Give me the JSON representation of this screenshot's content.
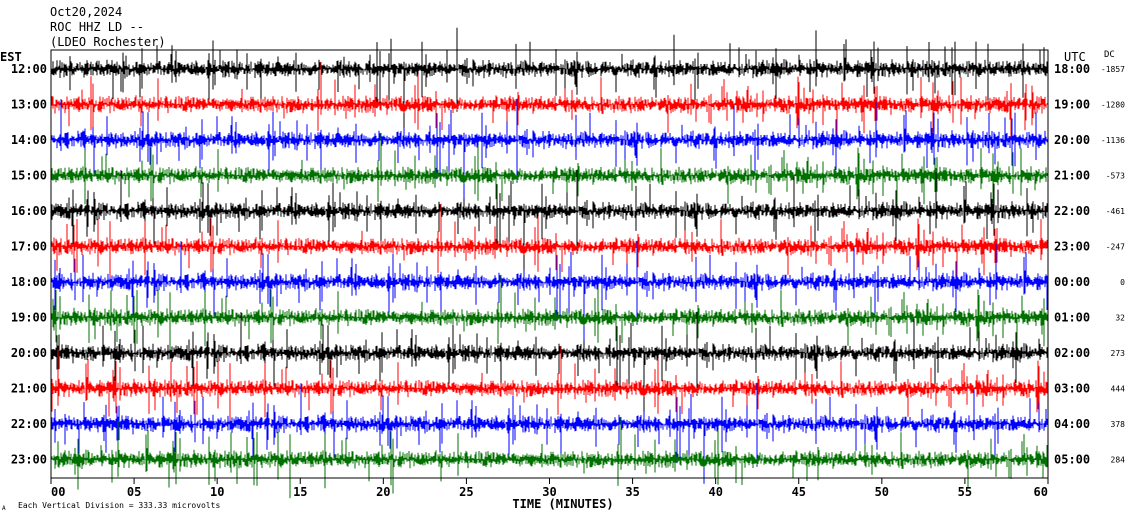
{
  "header": {
    "date": "Oct20,2024",
    "station": "ROC HHZ LD --",
    "location": "(LDEO Rochester)"
  },
  "left_axis_label": "EST",
  "right_axis_label": "UTC",
  "dc_label": "DC",
  "x_axis_label": "TIME (MINUTES)",
  "footer_note": "Each Vertical Division = 333.33 microvolts",
  "footer_mark": "A",
  "colors": {
    "cycle": [
      "#000000",
      "#ff0000",
      "#0000ff",
      "#007000"
    ],
    "frame": "#000000",
    "background": "#ffffff"
  },
  "chart_data": {
    "type": "line",
    "title": "Oct20,2024",
    "xlabel": "TIME (MINUTES)",
    "xlim": [
      0,
      60
    ],
    "x_ticks": [
      "00",
      "05",
      "10",
      "15",
      "20",
      "25",
      "30",
      "35",
      "40",
      "45",
      "50",
      "55",
      "60"
    ],
    "rows": [
      {
        "est": "12:00",
        "utc": "18:00",
        "dc": "-1857",
        "color": "#000000"
      },
      {
        "est": "13:00",
        "utc": "19:00",
        "dc": "-1280",
        "color": "#ff0000"
      },
      {
        "est": "14:00",
        "utc": "20:00",
        "dc": "-1136",
        "color": "#0000ff"
      },
      {
        "est": "15:00",
        "utc": "21:00",
        "dc": "-573",
        "color": "#007000"
      },
      {
        "est": "16:00",
        "utc": "22:00",
        "dc": "-461",
        "color": "#000000"
      },
      {
        "est": "17:00",
        "utc": "23:00",
        "dc": "-247",
        "color": "#ff0000"
      },
      {
        "est": "18:00",
        "utc": "00:00",
        "dc": "0",
        "color": "#0000ff"
      },
      {
        "est": "19:00",
        "utc": "01:00",
        "dc": "32",
        "color": "#007000"
      },
      {
        "est": "20:00",
        "utc": "02:00",
        "dc": "273",
        "color": "#000000"
      },
      {
        "est": "21:00",
        "utc": "03:00",
        "dc": "444",
        "color": "#ff0000"
      },
      {
        "est": "22:00",
        "utc": "04:00",
        "dc": "378",
        "color": "#0000ff"
      },
      {
        "est": "23:00",
        "utc": "05:00",
        "dc": "284",
        "color": "#007000"
      }
    ]
  }
}
